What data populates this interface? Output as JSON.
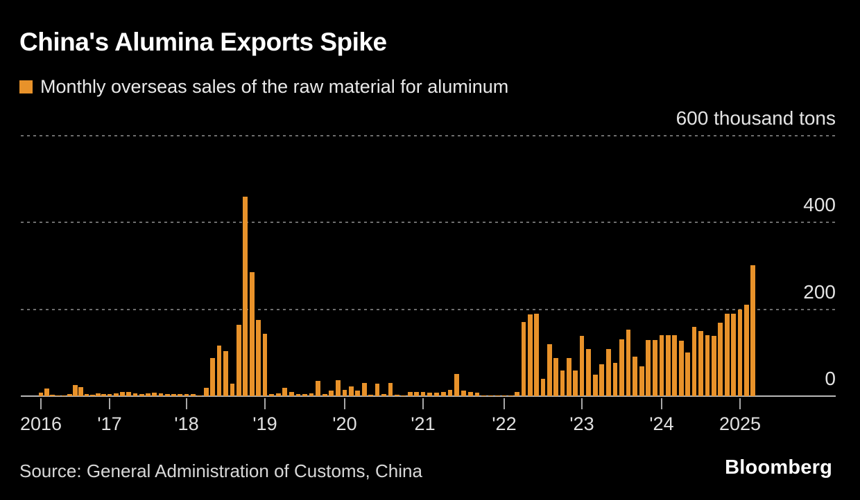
{
  "header": {
    "title": "China's Alumina Exports Spike",
    "legend_label": "Monthly overseas sales of the raw material for aluminum",
    "legend_swatch_icon": "orange-square-icon"
  },
  "footer": {
    "source": "Source: General Administration of Customs, China",
    "brand": "Bloomberg"
  },
  "colors": {
    "background": "#000000",
    "bar": "#E8922A",
    "grid": "#6E6E6E",
    "axis": "#B9B9B9",
    "label_text": "#E4E4E4",
    "title_text": "#FFFFFF"
  },
  "chart_data": {
    "type": "bar",
    "title": "China's Alumina Exports Spike",
    "legend": [
      "Monthly overseas sales of the raw material for aluminum"
    ],
    "legend_position": "top-left",
    "unit": "thousand tons",
    "frequency": "monthly",
    "start": "2016-01",
    "end": "2025-03",
    "ylim": [
      0,
      600
    ],
    "grid": "dashed horizontal",
    "y_ticks": [
      {
        "value": 600,
        "label": "600 thousand tons"
      },
      {
        "value": 400,
        "label": "400"
      },
      {
        "value": 200,
        "label": "200"
      },
      {
        "value": 0,
        "label": "0"
      }
    ],
    "x_tick_labels": [
      "2016",
      "'17",
      "'18",
      "'19",
      "'20",
      "'21",
      "'22",
      "'23",
      "'24",
      "2025"
    ],
    "series": [
      {
        "name": "Monthly overseas sales of the raw material for aluminum",
        "values": [
          8,
          18,
          3,
          2,
          2,
          4,
          26,
          21,
          4,
          3,
          6,
          4,
          5,
          7,
          10,
          10,
          7,
          5,
          6,
          8,
          6,
          5,
          5,
          4,
          4,
          5,
          2,
          19,
          88,
          117,
          103,
          28,
          164,
          460,
          286,
          176,
          144,
          4,
          6,
          19,
          10,
          5,
          5,
          6,
          35,
          5,
          12,
          36,
          15,
          22,
          13,
          30,
          3,
          29,
          4,
          30,
          3,
          2,
          9,
          9,
          9,
          8,
          8,
          10,
          15,
          51,
          13,
          10,
          8,
          2,
          1,
          2,
          2,
          1,
          10,
          170,
          188,
          190,
          40,
          119,
          88,
          59,
          88,
          59,
          139,
          108,
          50,
          74,
          108,
          76,
          131,
          153,
          91,
          68,
          130,
          130,
          140,
          140,
          140,
          127,
          100,
          160,
          150,
          140,
          139,
          169,
          190,
          190,
          200,
          211,
          301
        ]
      }
    ]
  }
}
